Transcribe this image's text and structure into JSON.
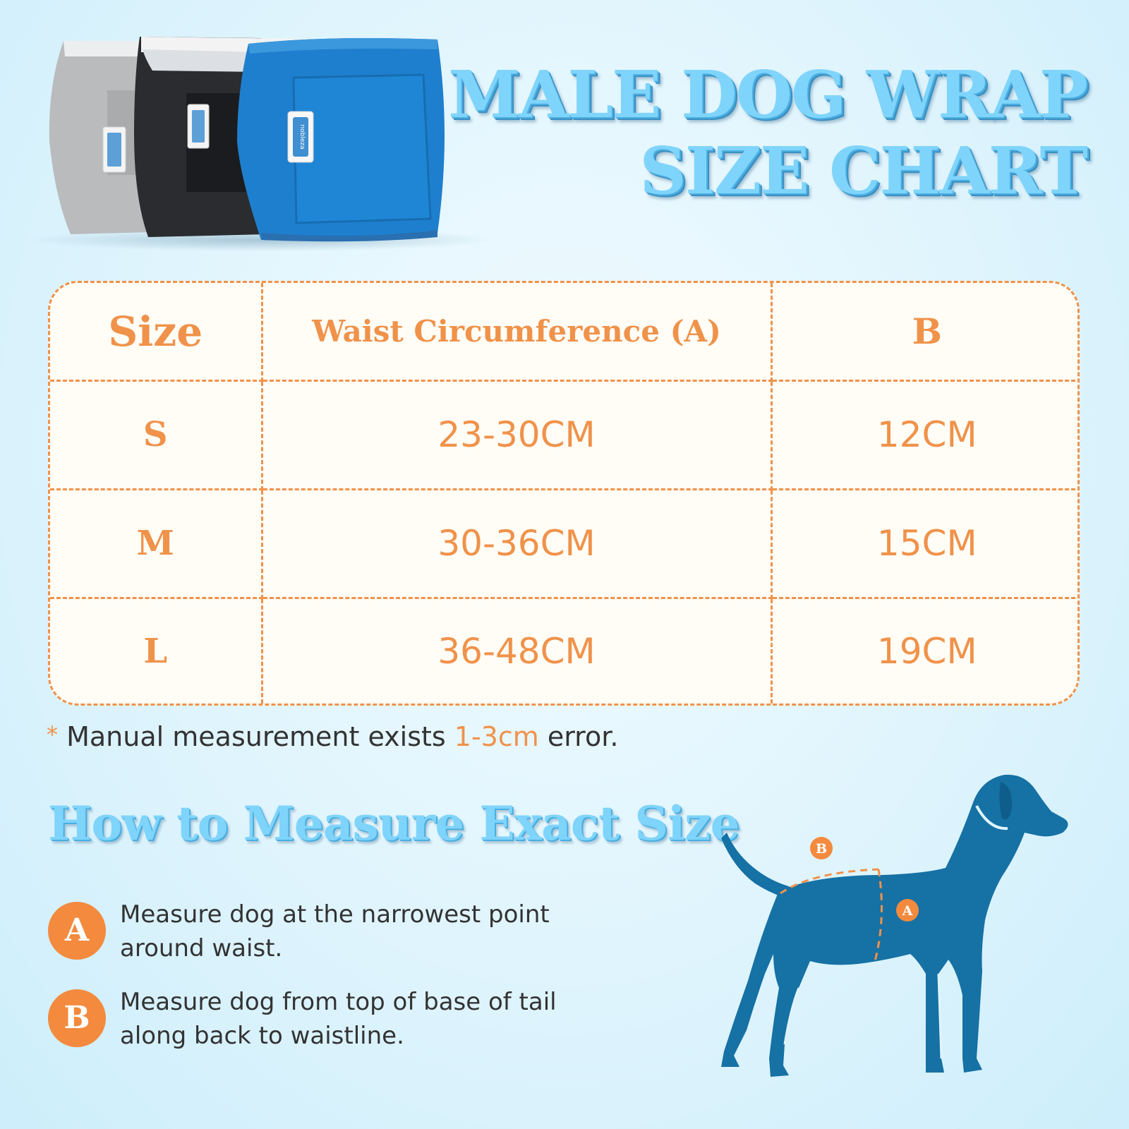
{
  "title": {
    "line1": "MALE DOG WRAP",
    "line2": "SIZE CHART"
  },
  "product": {
    "brand_label": "nobleza"
  },
  "table": {
    "headers": [
      "Size",
      "Waist Circumference (A)",
      "B"
    ],
    "rows": [
      {
        "size": "S",
        "waist": "23-30CM",
        "b": "12CM"
      },
      {
        "size": "M",
        "waist": "30-36CM",
        "b": "15CM"
      },
      {
        "size": "L",
        "waist": "36-48CM",
        "b": "19CM"
      }
    ]
  },
  "note": {
    "star": "*",
    "prefix": "Manual measurement exists ",
    "highlight": "1-3cm",
    "suffix": " error."
  },
  "howto": {
    "title": "How to Measure Exact Size"
  },
  "steps": [
    {
      "badge": "A",
      "line1": "Measure dog at the narrowest point",
      "line2": "around waist."
    },
    {
      "badge": "B",
      "line1": "Measure dog from top of base of tail",
      "line2": "along back to waistline."
    }
  ],
  "dog_markers": {
    "a": "A",
    "b": "B"
  },
  "colors": {
    "orange": "#f0924a",
    "title_blue": "#7fd4fb",
    "dog_blue": "#1671a4",
    "background": "#dff4fd"
  }
}
